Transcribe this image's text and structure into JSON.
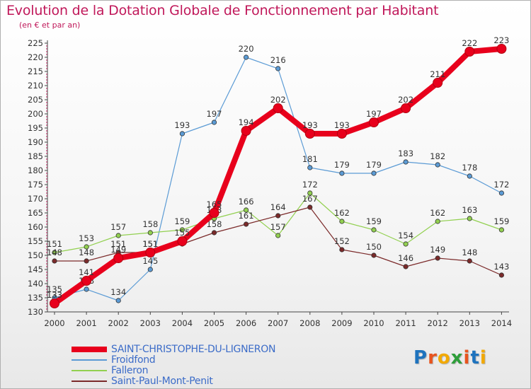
{
  "title": "Evolution de la Dotation Globale de Fonctionnement par Habitant",
  "subtitle": "(en € et par an)",
  "logo": {
    "text": "Proxiti",
    "letters": [
      "P",
      "r",
      "o",
      "x",
      "i",
      "t",
      "i"
    ],
    "colors": [
      "#1e73be",
      "#e8541e",
      "#f2a900",
      "#2e9e3a",
      "#e8541e",
      "#1e73be",
      "#f2a900"
    ]
  },
  "chart_data": {
    "type": "line",
    "title": "Evolution de la Dotation Globale de Fonctionnement par Habitant",
    "xlabel": "",
    "ylabel": "(en € et par an)",
    "ylim": [
      130,
      225
    ],
    "yticks": [
      130,
      135,
      140,
      145,
      150,
      155,
      160,
      165,
      170,
      175,
      180,
      185,
      190,
      195,
      200,
      205,
      210,
      215,
      220,
      225
    ],
    "categories": [
      "2000",
      "2001",
      "2002",
      "2003",
      "2004",
      "2005",
      "2006",
      "2007",
      "2008",
      "2009",
      "2010",
      "2011",
      "2012",
      "2013",
      "2014"
    ],
    "series": [
      {
        "name": "Froidfond",
        "color": "#5b9bd5",
        "values": [
          135,
          138,
          134,
          145,
          193,
          197,
          220,
          216,
          181,
          179,
          179,
          183,
          182,
          178,
          172
        ],
        "labels": [
          "135",
          "138",
          "134",
          "145",
          "193",
          "197",
          "220",
          "216",
          "181",
          "179",
          "179",
          "183",
          "182",
          "178",
          "172"
        ]
      },
      {
        "name": "Falleron",
        "color": "#92d050",
        "values": [
          151,
          153,
          157,
          158,
          159,
          163,
          166,
          157,
          172,
          162,
          159,
          154,
          162,
          163,
          159
        ],
        "labels": [
          "151",
          "153",
          "157",
          "158",
          "159",
          "163",
          "166",
          "157",
          "172",
          "162",
          "159",
          "154",
          "162",
          "163",
          "159"
        ]
      },
      {
        "name": "Saint-Paul-Mont-Penit",
        "color": "#7b2a2a",
        "values": [
          148,
          148,
          151,
          151,
          154,
          158,
          161,
          164,
          167,
          152,
          150,
          146,
          149,
          148,
          143
        ],
        "labels": [
          "148",
          "148",
          "151",
          "151",
          "",
          "158",
          "161",
          "164",
          "167",
          "152",
          "150",
          "146",
          "149",
          "148",
          "143"
        ]
      },
      {
        "name": "SAINT-CHRISTOPHE-DU-LIGNERON",
        "color": "#e8001c",
        "values": [
          133,
          141,
          149,
          151,
          155,
          165,
          194,
          202,
          193,
          193,
          197,
          202,
          211,
          222,
          223
        ],
        "labels": [
          "133",
          "141",
          "149",
          "151",
          "155",
          "165",
          "194",
          "202",
          "193",
          "193",
          "197",
          "202",
          "211",
          "222",
          "223"
        ]
      }
    ],
    "legend": [
      "SAINT-CHRISTOPHE-DU-LIGNERON",
      "Froidfond",
      "Falleron",
      "Saint-Paul-Mont-Penit"
    ],
    "legend_position": "bottom-left",
    "grid": false
  }
}
